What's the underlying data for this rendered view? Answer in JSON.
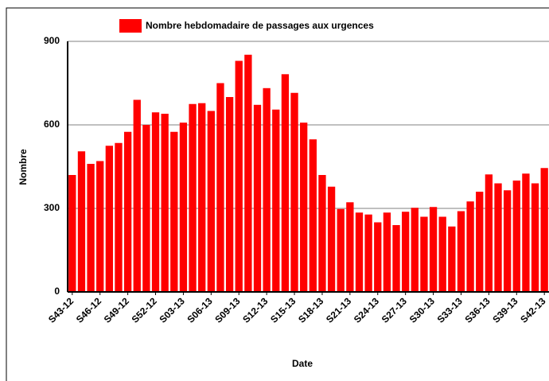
{
  "chart_data": {
    "type": "bar",
    "legend": "Nombre hebdomadaire de passages aux urgences",
    "x_label": "Date",
    "y_label": "Nombre",
    "color": "#ff0000",
    "categories": [
      "S43-12",
      null,
      null,
      "S46-12",
      null,
      null,
      "S49-12",
      null,
      null,
      "S52-12",
      null,
      null,
      "S03-13",
      null,
      null,
      "S06-13",
      null,
      null,
      "S09-13",
      null,
      null,
      "S12-13",
      null,
      null,
      "S15-13",
      null,
      null,
      "S18-13",
      null,
      null,
      "S21-13",
      null,
      null,
      "S24-13",
      null,
      null,
      "S27-13",
      null,
      null,
      "S30-13",
      null,
      null,
      "S33-13",
      null,
      null,
      "S36-13",
      null,
      null,
      "S39-13",
      null,
      null,
      "S42-13"
    ],
    "values": [
      420,
      505,
      460,
      470,
      525,
      535,
      575,
      690,
      600,
      645,
      640,
      575,
      608,
      675,
      678,
      650,
      750,
      700,
      830,
      852,
      672,
      732,
      655,
      782,
      715,
      608,
      548,
      420,
      378,
      298,
      322,
      285,
      278,
      250,
      285,
      240,
      288,
      302,
      270,
      305,
      270,
      235,
      290,
      325,
      360,
      422,
      390,
      365,
      400,
      425,
      390,
      445
    ],
    "ylim": [
      0,
      900
    ],
    "yticks": [
      0,
      300,
      600,
      900
    ],
    "grid": true
  }
}
